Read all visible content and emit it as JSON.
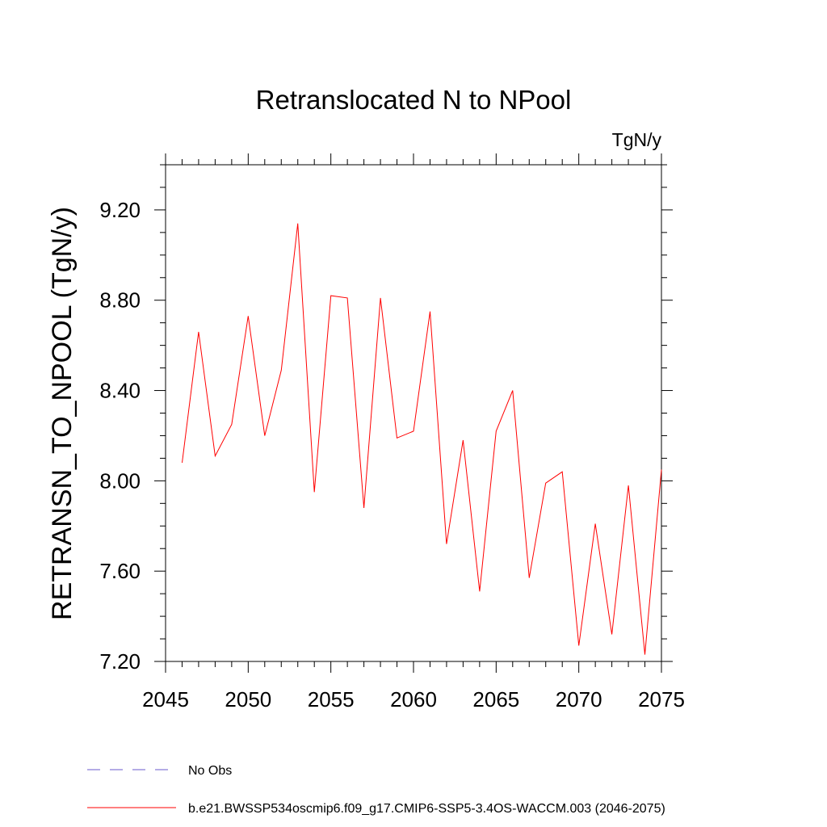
{
  "chart_data": {
    "type": "line",
    "title": "Retranslocated N to NPool",
    "units": "TgN/y",
    "ylabel": "RETRANSN_TO_NPOOL  (TgN/y)",
    "xlabel": "",
    "xlim": [
      2045,
      2075
    ],
    "ylim": [
      7.2,
      9.4
    ],
    "xticks": [
      2045,
      2050,
      2055,
      2060,
      2065,
      2070,
      2075
    ],
    "yticks": [
      7.2,
      7.6,
      8.0,
      8.4,
      8.8,
      9.2
    ],
    "ytick_labels": [
      "7.20",
      "7.60",
      "8.00",
      "8.40",
      "8.80",
      "9.20"
    ],
    "grid": false,
    "legend_placement": "bottom-left",
    "series": [
      {
        "name": "No Obs",
        "color": "#6a5acd",
        "dash": "dashed",
        "x": [],
        "y": []
      },
      {
        "name": "b.e21.BWSSP534oscmip6.f09_g17.CMIP6-SSP5-3.4OS-WACCM.003 (2046-2075)",
        "color": "#ff0000",
        "dash": "solid",
        "x": [
          2046,
          2047,
          2048,
          2049,
          2050,
          2051,
          2052,
          2053,
          2054,
          2055,
          2056,
          2057,
          2058,
          2059,
          2060,
          2061,
          2062,
          2063,
          2064,
          2065,
          2066,
          2067,
          2068,
          2069,
          2070,
          2071,
          2072,
          2073,
          2074,
          2075
        ],
        "y": [
          8.08,
          8.66,
          8.11,
          8.25,
          8.73,
          8.2,
          8.49,
          9.14,
          7.95,
          8.82,
          8.81,
          7.88,
          8.81,
          8.19,
          8.22,
          8.75,
          7.72,
          8.18,
          7.51,
          8.22,
          8.4,
          7.57,
          7.99,
          8.04,
          7.27,
          7.81,
          7.32,
          7.98,
          7.23,
          8.05
        ]
      }
    ]
  }
}
